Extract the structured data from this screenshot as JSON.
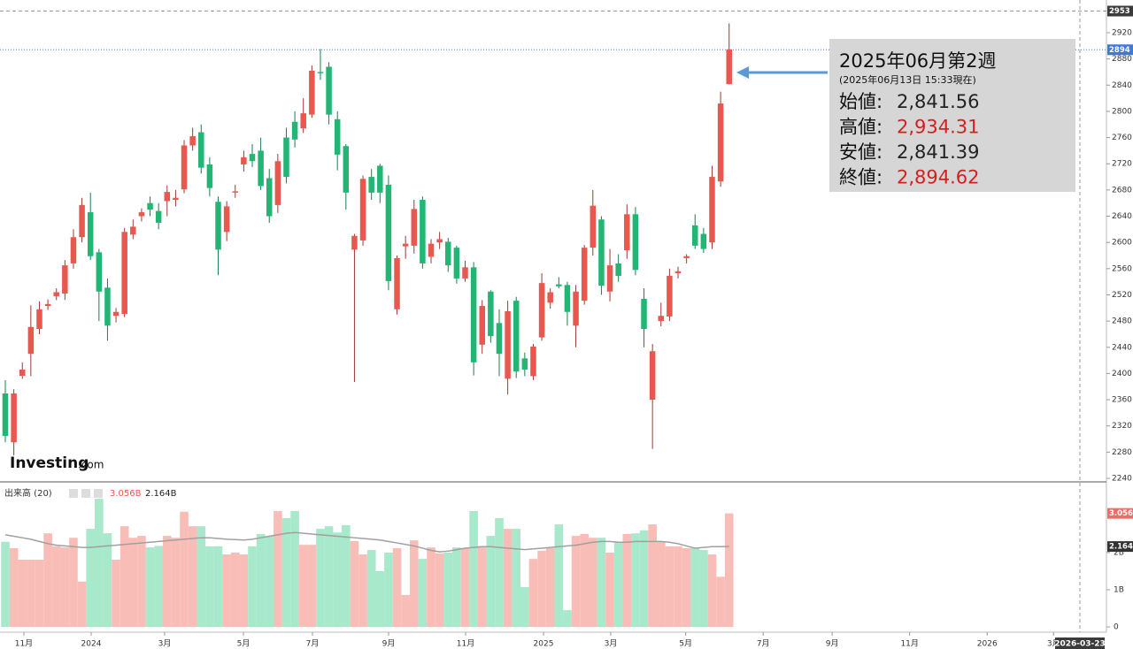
{
  "chart_data": {
    "type": "candlestick",
    "logo": "Investing",
    "logo_suffix": ".com",
    "up_color": "#e8584f",
    "down_color": "#22b573",
    "vol_up_color": "#f9bdb8",
    "vol_down_color": "#a8e8cb",
    "ma_color": "#a0a0a0",
    "ylim": [
      2234.6,
      2956.4
    ],
    "yticks": [
      2240,
      2280,
      2320,
      2360,
      2400,
      2440,
      2480,
      2520,
      2560,
      2600,
      2640,
      2680,
      2720,
      2760,
      2800,
      2840,
      2880,
      2920
    ],
    "xlim": [
      -0.624,
      129.31
    ],
    "xticks": [
      {
        "value": 2.18,
        "label": "11月"
      },
      {
        "value": 10.08,
        "label": "2024"
      },
      {
        "value": 18.71,
        "label": "3月"
      },
      {
        "value": 27.96,
        "label": "5月"
      },
      {
        "value": 36.07,
        "label": "7月"
      },
      {
        "value": 45.01,
        "label": "9月"
      },
      {
        "value": 54.05,
        "label": "11月"
      },
      {
        "value": 63.2,
        "label": "2025"
      },
      {
        "value": 71.1,
        "label": "3月"
      },
      {
        "value": 79.9,
        "label": "5月"
      },
      {
        "value": 89.0,
        "label": "7月"
      },
      {
        "value": 97.1,
        "label": "9月"
      },
      {
        "value": 106.2,
        "label": "11月"
      },
      {
        "value": 115.3,
        "label": "2026"
      },
      {
        "value": 123.1,
        "label": "3月"
      }
    ],
    "cursor_date": "2026-03-23",
    "high_line": {
      "value": 2953
    },
    "last_line": {
      "value": 2894
    },
    "candles": {
      "open": [
        2369.5,
        2295,
        2396.5,
        2430,
        2468,
        2503,
        2518,
        2522,
        2568,
        2608,
        2646,
        2585,
        2531,
        2488,
        2491,
        2612,
        2640,
        2660,
        2648,
        2663,
        2665,
        2681,
        2748,
        2768,
        2719,
        2662,
        2616,
        2676,
        2719,
        2735,
        2740,
        2698,
        2657,
        2760,
        2784,
        2774,
        2795,
        2860,
        2868,
        2788,
        2747,
        2589,
        2603,
        2700,
        2717,
        2688,
        2498,
        2594,
        2595,
        2665,
        2578,
        2600,
        2601,
        2592,
        2545,
        2562,
        2444,
        2525,
        2477,
        2392,
        2511,
        2423,
        2396,
        2455,
        2508,
        2536,
        2535,
        2473,
        2511,
        2592,
        2635,
        2525,
        2568,
        2588,
        2643,
        2514,
        2360,
        2480,
        2487,
        2553,
        2576,
        2626,
        2613,
        2600,
        2693,
        2841.56
      ],
      "high": [
        2389.8,
        2376,
        2417,
        2504,
        2510,
        2513,
        2530,
        2573,
        2620,
        2668,
        2676,
        2590,
        2545,
        2500,
        2622,
        2635,
        2652,
        2670,
        2660,
        2687,
        2680,
        2756,
        2775,
        2780,
        2730,
        2670,
        2663,
        2688,
        2740,
        2750,
        2760,
        2712,
        2735,
        2775,
        2800,
        2820,
        2870,
        2895,
        2875,
        2800,
        2750,
        2613,
        2702,
        2712,
        2720,
        2702,
        2580,
        2610,
        2665,
        2670,
        2605,
        2616,
        2607,
        2595,
        2572,
        2570,
        2512,
        2527,
        2498,
        2511,
        2517,
        2432,
        2445,
        2553,
        2530,
        2547,
        2540,
        2535,
        2596,
        2680,
        2640,
        2590,
        2582,
        2658,
        2654,
        2530,
        2445,
        2508,
        2560,
        2563,
        2582,
        2643,
        2622,
        2717,
        2830,
        2934.31
      ],
      "low": [
        2295,
        2275,
        2392,
        2396,
        2460,
        2497,
        2512,
        2512,
        2560,
        2600,
        2573,
        2480,
        2450,
        2478,
        2486,
        2605,
        2632,
        2640,
        2620,
        2640,
        2655,
        2675,
        2740,
        2705,
        2670,
        2550,
        2602,
        2668,
        2708,
        2715,
        2680,
        2630,
        2645,
        2690,
        2745,
        2767,
        2790,
        2848,
        2780,
        2710,
        2650,
        2387,
        2595,
        2665,
        2660,
        2527,
        2490,
        2575,
        2583,
        2560,
        2568,
        2590,
        2555,
        2537,
        2540,
        2397,
        2430,
        2447,
        2396,
        2368,
        2393,
        2396,
        2390,
        2450,
        2499,
        2530,
        2473,
        2440,
        2505,
        2580,
        2520,
        2510,
        2540,
        2575,
        2550,
        2440,
        2285,
        2472,
        2480,
        2545,
        2568,
        2590,
        2584,
        2590,
        2685,
        2841.39
      ],
      "close": [
        2304.8,
        2369.5,
        2406,
        2471,
        2498,
        2506,
        2524,
        2565,
        2608,
        2657,
        2579,
        2525,
        2473,
        2494,
        2616,
        2624,
        2646,
        2650,
        2630,
        2677,
        2668,
        2748,
        2762,
        2714,
        2683,
        2589,
        2655,
        2678,
        2730,
        2724,
        2686,
        2640,
        2724,
        2700,
        2757,
        2797,
        2862,
        2858,
        2795,
        2734,
        2676,
        2610,
        2697,
        2676,
        2676,
        2541,
        2576,
        2598,
        2651,
        2568,
        2598,
        2605,
        2565,
        2545,
        2562,
        2417,
        2503,
        2457,
        2430,
        2495,
        2403,
        2406,
        2441,
        2538,
        2524,
        2533,
        2494,
        2525,
        2592,
        2656,
        2534,
        2565,
        2549,
        2643,
        2558,
        2468,
        2434,
        2488,
        2549,
        2556,
        2579,
        2595,
        2590,
        2700,
        2812,
        2894.62
      ]
    },
    "volume_name": "出来高 (20)",
    "volume_label": "3.056B",
    "ma_label": "2.164B",
    "volume_axis_label": "3.056",
    "ma_axis_label": "2.164",
    "vlim": [
      -0.143,
      3.833
    ],
    "vticks": [
      0,
      {
        "value": 1,
        "label": "1B"
      },
      {
        "value": 2,
        "label": "2B"
      }
    ],
    "volume": [
      2.29,
      2.12,
      1.81,
      1.81,
      1.81,
      2.52,
      2.17,
      2.14,
      2.4,
      1.22,
      2.64,
      3.45,
      2.52,
      1.81,
      2.71,
      2.4,
      2.45,
      2.14,
      2.18,
      2.45,
      2.4,
      3.1,
      2.71,
      2.71,
      2.17,
      2.17,
      1.95,
      2.0,
      1.95,
      2.17,
      2.5,
      2.45,
      3.12,
      2.93,
      3.12,
      2.21,
      2.21,
      2.64,
      2.71,
      2.54,
      2.74,
      2.31,
      1.95,
      2.07,
      1.5,
      2.0,
      2.12,
      0.86,
      2.33,
      1.83,
      2.14,
      1.98,
      2.0,
      2.14,
      2.11,
      3.12,
      2.17,
      2.45,
      2.93,
      2.64,
      2.64,
      1.07,
      1.83,
      2.05,
      2.12,
      2.76,
      0.45,
      2.45,
      2.5,
      2.4,
      2.4,
      2.0,
      2.29,
      2.5,
      2.52,
      2.6,
      2.76,
      2.29,
      2.17,
      2.17,
      2.12,
      2.12,
      2.07,
      1.95,
      1.35,
      3.056
    ],
    "volume_ma": [
      2.48,
      2.44,
      2.4,
      2.36,
      2.3,
      2.24,
      2.2,
      2.18,
      2.16,
      2.14,
      2.14,
      2.16,
      2.18,
      2.2,
      2.22,
      2.24,
      2.26,
      2.28,
      2.3,
      2.32,
      2.34,
      2.36,
      2.38,
      2.4,
      2.4,
      2.38,
      2.36,
      2.35,
      2.34,
      2.36,
      2.4,
      2.44,
      2.48,
      2.52,
      2.54,
      2.52,
      2.5,
      2.48,
      2.46,
      2.44,
      2.42,
      2.4,
      2.38,
      2.36,
      2.34,
      2.3,
      2.26,
      2.22,
      2.18,
      2.12,
      2.06,
      2.02,
      2.04,
      2.08,
      2.12,
      2.14,
      2.16,
      2.16,
      2.14,
      2.12,
      2.1,
      2.08,
      2.1,
      2.12,
      2.14,
      2.16,
      2.18,
      2.2,
      2.24,
      2.28,
      2.3,
      2.3,
      2.28,
      2.28,
      2.3,
      2.3,
      2.3,
      2.3,
      2.28,
      2.24,
      2.18,
      2.12,
      2.14,
      2.16,
      2.16,
      2.164
    ],
    "annotation": {
      "title": "2025年06月第2週",
      "note": "(2025年06月13日 15:33現在)",
      "rows": [
        {
          "label": "始値:",
          "value": "2,841.56",
          "color": "#222222"
        },
        {
          "label": "高値:",
          "value": "2,934.31",
          "color": "#d42020"
        },
        {
          "label": "安値:",
          "value": "2,841.39",
          "color": "#222222"
        },
        {
          "label": "終値:",
          "value": "2,894.62",
          "color": "#d42020"
        }
      ]
    }
  }
}
